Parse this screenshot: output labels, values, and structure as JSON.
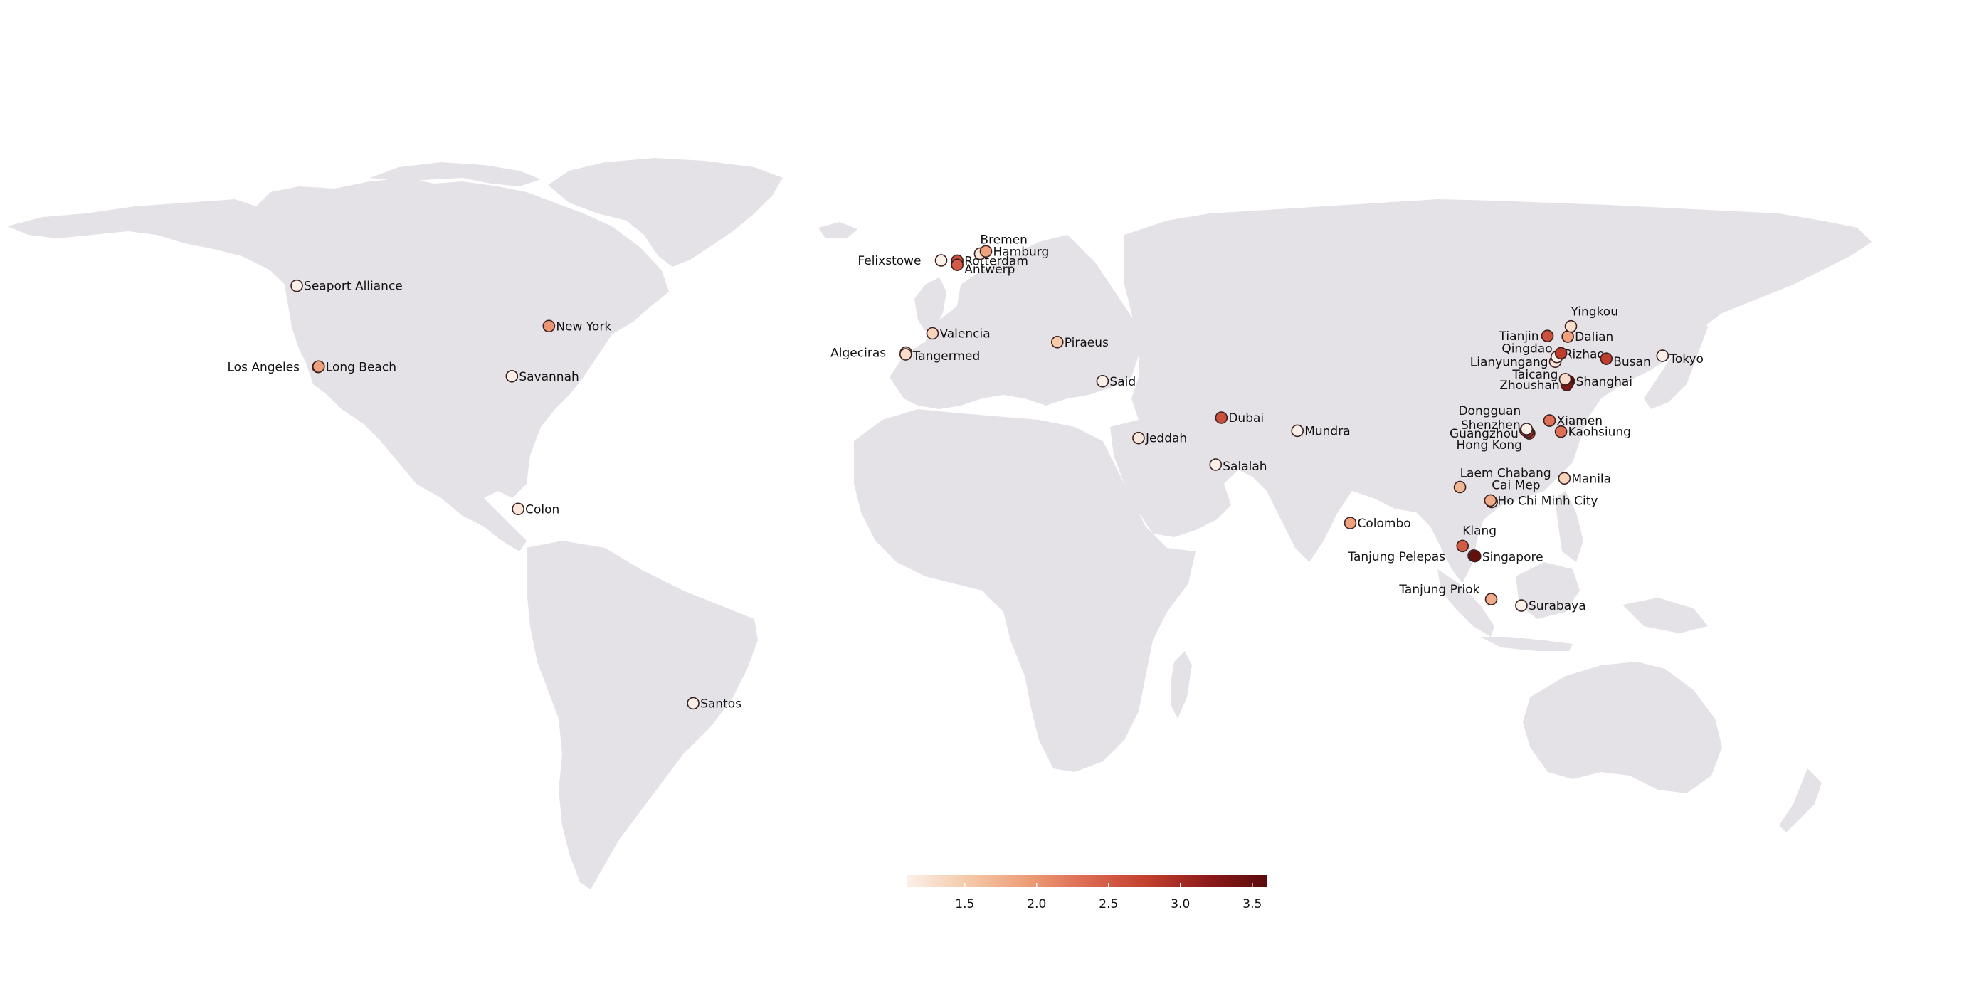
{
  "map": {
    "ports": [
      {
        "name": "Seaport Alliance",
        "value": 1.1,
        "lon": -122.4,
        "lat": 47.6
      },
      {
        "name": "Los Angeles",
        "value": 2.2,
        "lon": -118.3,
        "lat": 33.7
      },
      {
        "name": "Long Beach",
        "value": 1.9,
        "lon": -118.2,
        "lat": 33.75
      },
      {
        "name": "New York",
        "value": 2.0,
        "lon": -74.0,
        "lat": 40.7
      },
      {
        "name": "Savannah",
        "value": 1.1,
        "lon": -81.1,
        "lat": 32.1
      },
      {
        "name": "Colon",
        "value": 1.2,
        "lon": -79.9,
        "lat": 9.35
      },
      {
        "name": "Santos",
        "value": 1.1,
        "lon": -46.3,
        "lat": -23.95
      },
      {
        "name": "Felixstowe",
        "value": 1.0,
        "lon": 1.3,
        "lat": 51.95
      },
      {
        "name": "Rotterdam",
        "value": 2.6,
        "lon": 4.4,
        "lat": 51.9
      },
      {
        "name": "Antwerp",
        "value": 2.5,
        "lon": 4.4,
        "lat": 51.2
      },
      {
        "name": "Bremen",
        "value": 1.2,
        "lon": 8.8,
        "lat": 53.1
      },
      {
        "name": "Hamburg",
        "value": 1.9,
        "lon": 9.9,
        "lat": 53.5
      },
      {
        "name": "Valencia",
        "value": 1.4,
        "lon": -0.35,
        "lat": 39.45
      },
      {
        "name": "Algeciras",
        "value": 1.4,
        "lon": -5.45,
        "lat": 36.15
      },
      {
        "name": "Tangermed",
        "value": 1.3,
        "lon": -5.5,
        "lat": 35.85
      },
      {
        "name": "Piraeus",
        "value": 1.5,
        "lon": 23.6,
        "lat": 37.95
      },
      {
        "name": "Said",
        "value": 1.05,
        "lon": 32.3,
        "lat": 31.25
      },
      {
        "name": "Jeddah",
        "value": 1.2,
        "lon": 39.2,
        "lat": 21.5
      },
      {
        "name": "Dubai",
        "value": 2.6,
        "lon": 55.1,
        "lat": 25.0
      },
      {
        "name": "Salalah",
        "value": 1.1,
        "lon": 54.0,
        "lat": 16.95
      },
      {
        "name": "Mundra",
        "value": 1.1,
        "lon": 69.7,
        "lat": 22.75
      },
      {
        "name": "Colombo",
        "value": 1.9,
        "lon": 79.85,
        "lat": 6.95
      },
      {
        "name": "Klang",
        "value": 2.5,
        "lon": 101.4,
        "lat": 3.0
      },
      {
        "name": "Tanjung Pelepas",
        "value": 2.2,
        "lon": 103.55,
        "lat": 1.35
      },
      {
        "name": "Singapore",
        "value": 3.5,
        "lon": 103.8,
        "lat": 1.27
      },
      {
        "name": "Tanjung Priok",
        "value": 1.8,
        "lon": 106.9,
        "lat": -6.1
      },
      {
        "name": "Surabaya",
        "value": 1.1,
        "lon": 112.7,
        "lat": -7.2
      },
      {
        "name": "Laem Chabang",
        "value": 1.7,
        "lon": 100.9,
        "lat": 13.1
      },
      {
        "name": "Cai Mep",
        "value": 1.1,
        "lon": 107.0,
        "lat": 10.55
      },
      {
        "name": "Ho Chi Minh City",
        "value": 1.8,
        "lon": 106.75,
        "lat": 10.8
      },
      {
        "name": "Manila",
        "value": 1.4,
        "lon": 120.95,
        "lat": 14.6
      },
      {
        "name": "Hong Kong",
        "value": 2.8,
        "lon": 114.2,
        "lat": 22.3
      },
      {
        "name": "Shenzhen",
        "value": 3.0,
        "lon": 113.9,
        "lat": 22.55
      },
      {
        "name": "Guangzhou",
        "value": 3.0,
        "lon": 113.5,
        "lat": 22.8
      },
      {
        "name": "Dongguan",
        "value": 1.1,
        "lon": 113.7,
        "lat": 23.05
      },
      {
        "name": "Xiamen",
        "value": 2.3,
        "lon": 118.1,
        "lat": 24.5
      },
      {
        "name": "Kaohsiung",
        "value": 2.3,
        "lon": 120.3,
        "lat": 22.6
      },
      {
        "name": "Shanghai",
        "value": 3.6,
        "lon": 121.8,
        "lat": 31.25
      },
      {
        "name": "Zhoushan",
        "value": 3.3,
        "lon": 121.4,
        "lat": 30.6
      },
      {
        "name": "Taicang",
        "value": 1.3,
        "lon": 121.1,
        "lat": 31.6
      },
      {
        "name": "Lianyungang",
        "value": 1.2,
        "lon": 119.2,
        "lat": 34.6
      },
      {
        "name": "Rizhao",
        "value": 1.1,
        "lon": 119.5,
        "lat": 35.4
      },
      {
        "name": "Qingdao",
        "value": 2.8,
        "lon": 120.3,
        "lat": 36.05
      },
      {
        "name": "Tianjin",
        "value": 2.6,
        "lon": 117.7,
        "lat": 39.0
      },
      {
        "name": "Dalian",
        "value": 1.9,
        "lon": 121.6,
        "lat": 38.9
      },
      {
        "name": "Yingkou",
        "value": 1.3,
        "lon": 122.2,
        "lat": 40.65
      },
      {
        "name": "Busan",
        "value": 2.8,
        "lon": 129.0,
        "lat": 35.1
      },
      {
        "name": "Tokyo",
        "value": 1.1,
        "lon": 139.8,
        "lat": 35.6
      }
    ]
  },
  "colorbar": {
    "min": 1.1,
    "max": 3.6,
    "ticks": [
      "1.5",
      "2.0",
      "2.5",
      "3.0",
      "3.5"
    ],
    "colors": [
      "#fbf0e8",
      "#f5c9a9",
      "#ed9e78",
      "#dc6a53",
      "#c2402e",
      "#8e1b1a",
      "#5a0b0b"
    ]
  },
  "colors": {
    "land": "#e4e2e7",
    "background": "#ffffff",
    "marker_edge": "#3a2020"
  }
}
